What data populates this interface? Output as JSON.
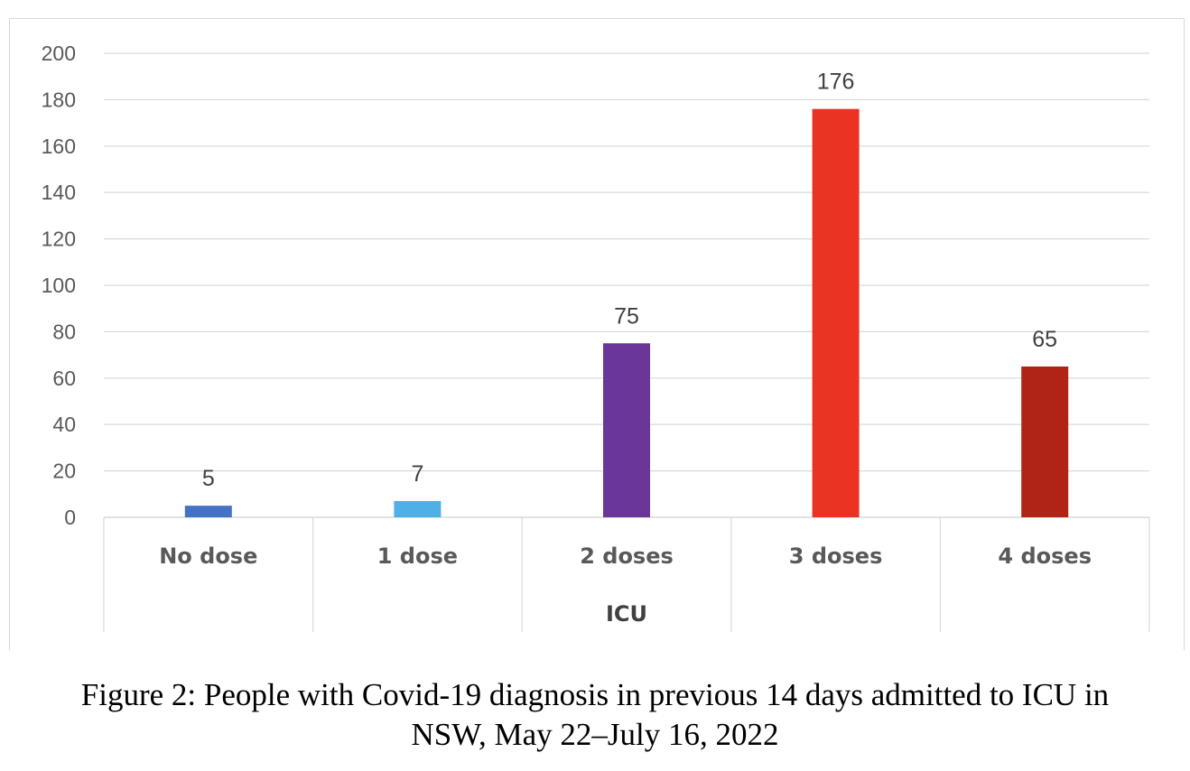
{
  "chart_data": {
    "type": "bar",
    "categories": [
      "No dose",
      "1 dose",
      "2 doses",
      "3 doses",
      "4 doses"
    ],
    "values": [
      5,
      7,
      75,
      176,
      65
    ],
    "colors": [
      "#4472c4",
      "#4fb0e8",
      "#6a3799",
      "#ea3323",
      "#b02418"
    ],
    "data_labels": [
      "5",
      "7",
      "75",
      "176",
      "65"
    ],
    "xlabel": "ICU",
    "ylabel": "",
    "ylim": [
      0,
      200
    ],
    "yticks": [
      0,
      20,
      40,
      60,
      80,
      100,
      120,
      140,
      160,
      180,
      200
    ],
    "grid": true,
    "legend": "none"
  },
  "caption": {
    "line1": "Figure 2: People with Covid-19 diagnosis in previous 14 days admitted to ICU in",
    "line2": "NSW, May 22–July 16, 2022"
  }
}
